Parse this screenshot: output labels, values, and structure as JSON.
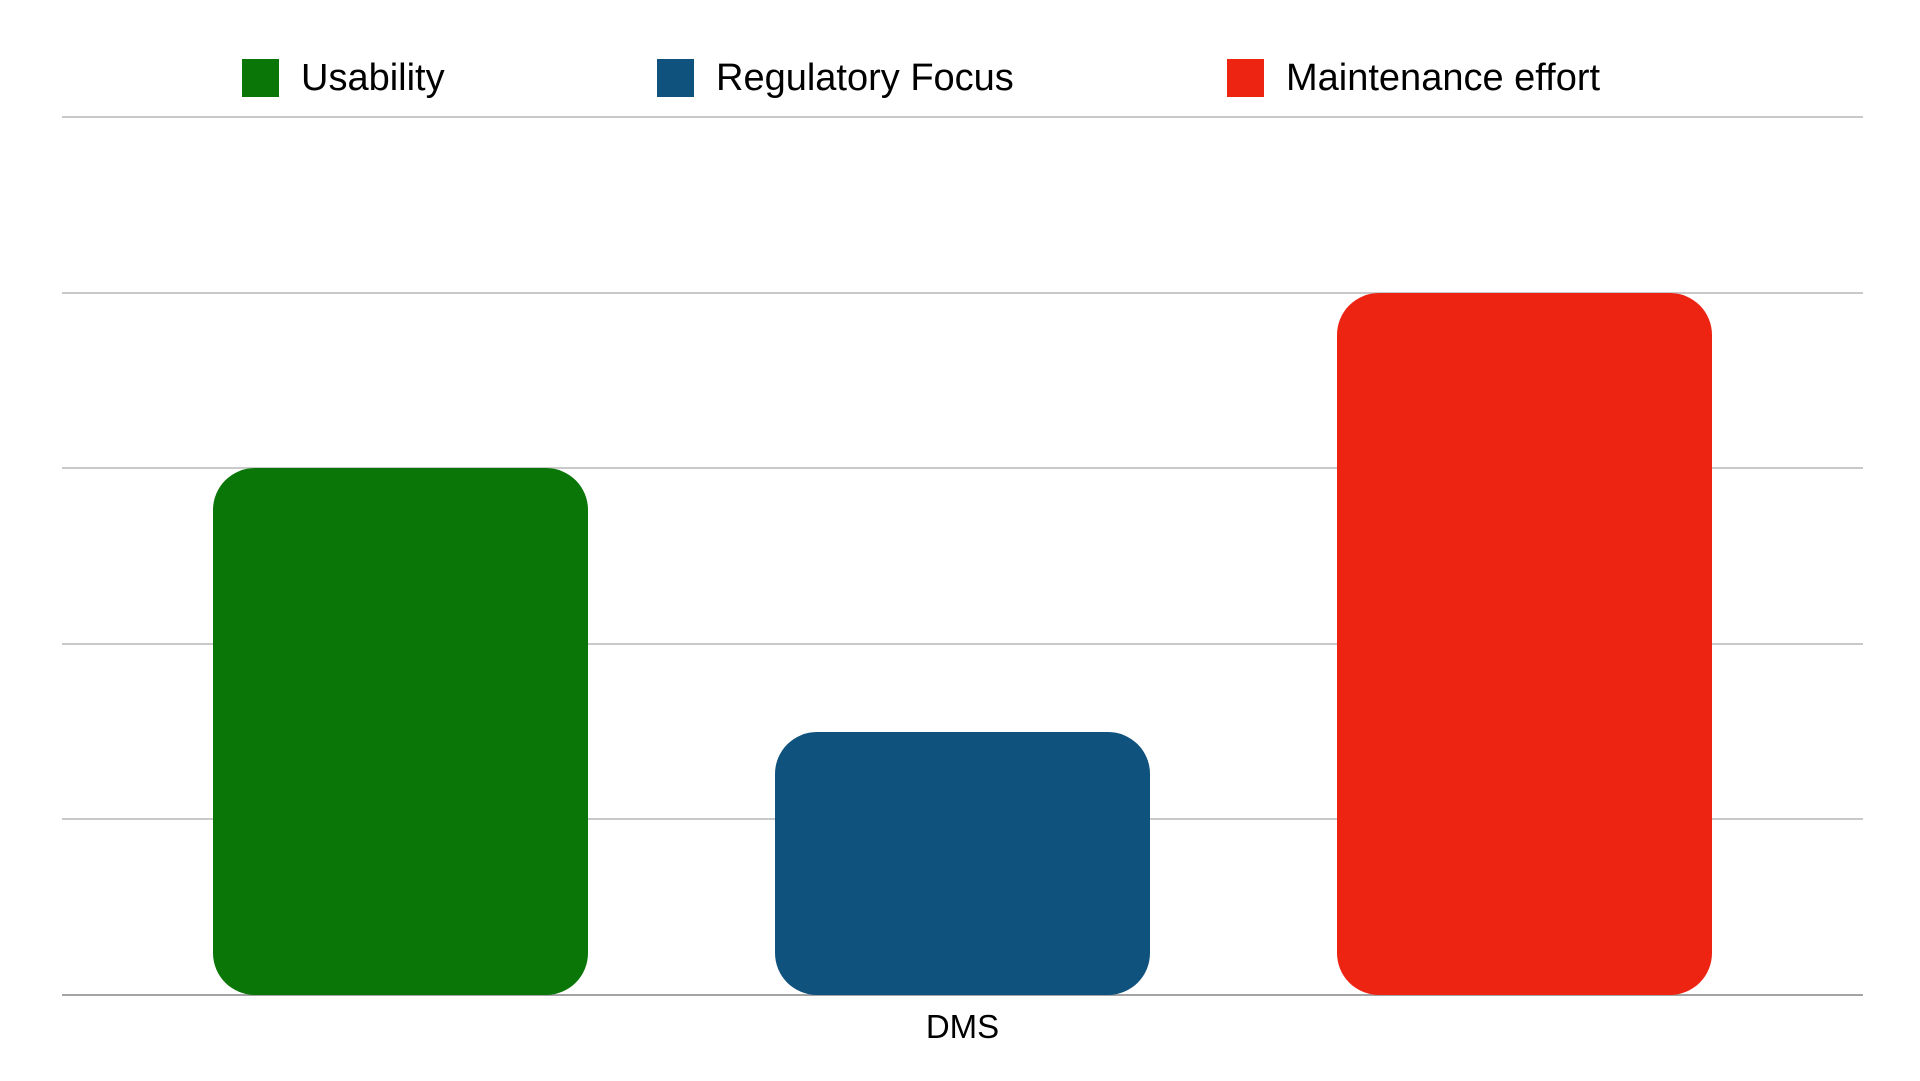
{
  "chart_data": {
    "type": "bar",
    "title": "",
    "xlabel": "",
    "ylabel": "",
    "categories": [
      "DMS"
    ],
    "series": [
      {
        "name": "Usability",
        "values": [
          3
        ],
        "color": "#0a7608"
      },
      {
        "name": "Regulatory Focus",
        "values": [
          1.5
        ],
        "color": "#0f527d"
      },
      {
        "name": "Maintenance effort",
        "values": [
          4
        ],
        "color": "#ee2413"
      }
    ],
    "ylim": [
      0,
      5
    ],
    "gridline_step": 1,
    "grid": true,
    "y_tick_labels_visible": false,
    "legend_position": "top",
    "bar_corner_style": "rounded"
  },
  "colors": {
    "background": "#ffffff",
    "gridline": "#c9c9c9",
    "axis_line": "#a3a3a3",
    "text": "#000000"
  }
}
